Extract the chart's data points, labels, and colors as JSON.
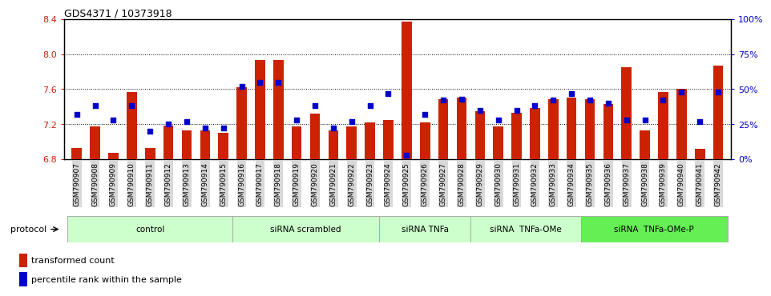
{
  "title": "GDS4371 / 10373918",
  "samples": [
    "GSM790907",
    "GSM790908",
    "GSM790909",
    "GSM790910",
    "GSM790911",
    "GSM790912",
    "GSM790913",
    "GSM790914",
    "GSM790915",
    "GSM790916",
    "GSM790917",
    "GSM790918",
    "GSM790919",
    "GSM790920",
    "GSM790921",
    "GSM790922",
    "GSM790923",
    "GSM790924",
    "GSM790925",
    "GSM790926",
    "GSM790927",
    "GSM790928",
    "GSM790929",
    "GSM790930",
    "GSM790931",
    "GSM790932",
    "GSM790933",
    "GSM790934",
    "GSM790935",
    "GSM790936",
    "GSM790937",
    "GSM790938",
    "GSM790939",
    "GSM790940",
    "GSM790941",
    "GSM790942"
  ],
  "transformed_count": [
    6.93,
    7.17,
    6.87,
    7.57,
    6.93,
    7.18,
    7.13,
    7.13,
    7.1,
    7.62,
    7.93,
    7.93,
    7.17,
    7.32,
    7.13,
    7.17,
    7.22,
    7.25,
    8.37,
    7.22,
    7.48,
    7.5,
    7.35,
    7.17,
    7.33,
    7.38,
    7.48,
    7.5,
    7.48,
    7.43,
    7.85,
    7.13,
    7.57,
    7.6,
    6.92,
    7.87
  ],
  "percentile_rank": [
    32,
    38,
    28,
    38,
    20,
    25,
    27,
    22,
    22,
    52,
    55,
    55,
    28,
    38,
    22,
    27,
    38,
    47,
    3,
    32,
    42,
    43,
    35,
    28,
    35,
    38,
    42,
    47,
    42,
    40,
    28,
    28,
    42,
    48,
    27,
    48
  ],
  "groups": [
    {
      "label": "control",
      "start": 0,
      "end": 9,
      "color": "#ccffcc"
    },
    {
      "label": "siRNA scrambled",
      "start": 9,
      "end": 17,
      "color": "#ccffcc"
    },
    {
      "label": "siRNA TNFa",
      "start": 17,
      "end": 22,
      "color": "#ccffcc"
    },
    {
      "label": "siRNA  TNFa-OMe",
      "start": 22,
      "end": 28,
      "color": "#ccffcc"
    },
    {
      "label": "siRNA  TNFa-OMe-P",
      "start": 28,
      "end": 36,
      "color": "#66ee55"
    }
  ],
  "ylim_left": [
    6.8,
    8.4
  ],
  "ylim_right": [
    0,
    100
  ],
  "yticks_left": [
    6.8,
    7.2,
    7.6,
    8.0,
    8.4
  ],
  "yticks_right": [
    0,
    25,
    50,
    75,
    100
  ],
  "ytick_labels_right": [
    "0%",
    "25%",
    "50%",
    "75%",
    "100%"
  ],
  "grid_lines": [
    7.2,
    7.6,
    8.0
  ],
  "bar_color": "#cc2200",
  "dot_color": "#0000cc",
  "axis_color_left": "#cc2200",
  "axis_color_right": "#0000cc",
  "tick_bg": "#d8d8d8",
  "proto_border": "#aaaaaa"
}
